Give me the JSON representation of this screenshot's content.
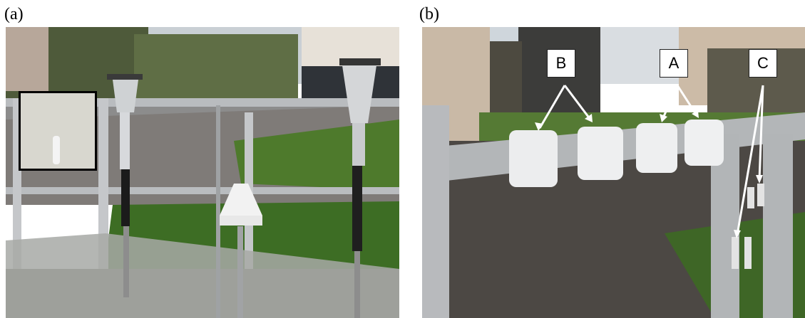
{
  "figure": {
    "panels": [
      {
        "label": "(a)"
      },
      {
        "label": "(b)"
      }
    ],
    "callouts": {
      "B": "B",
      "A": "A",
      "C": "C"
    }
  }
}
